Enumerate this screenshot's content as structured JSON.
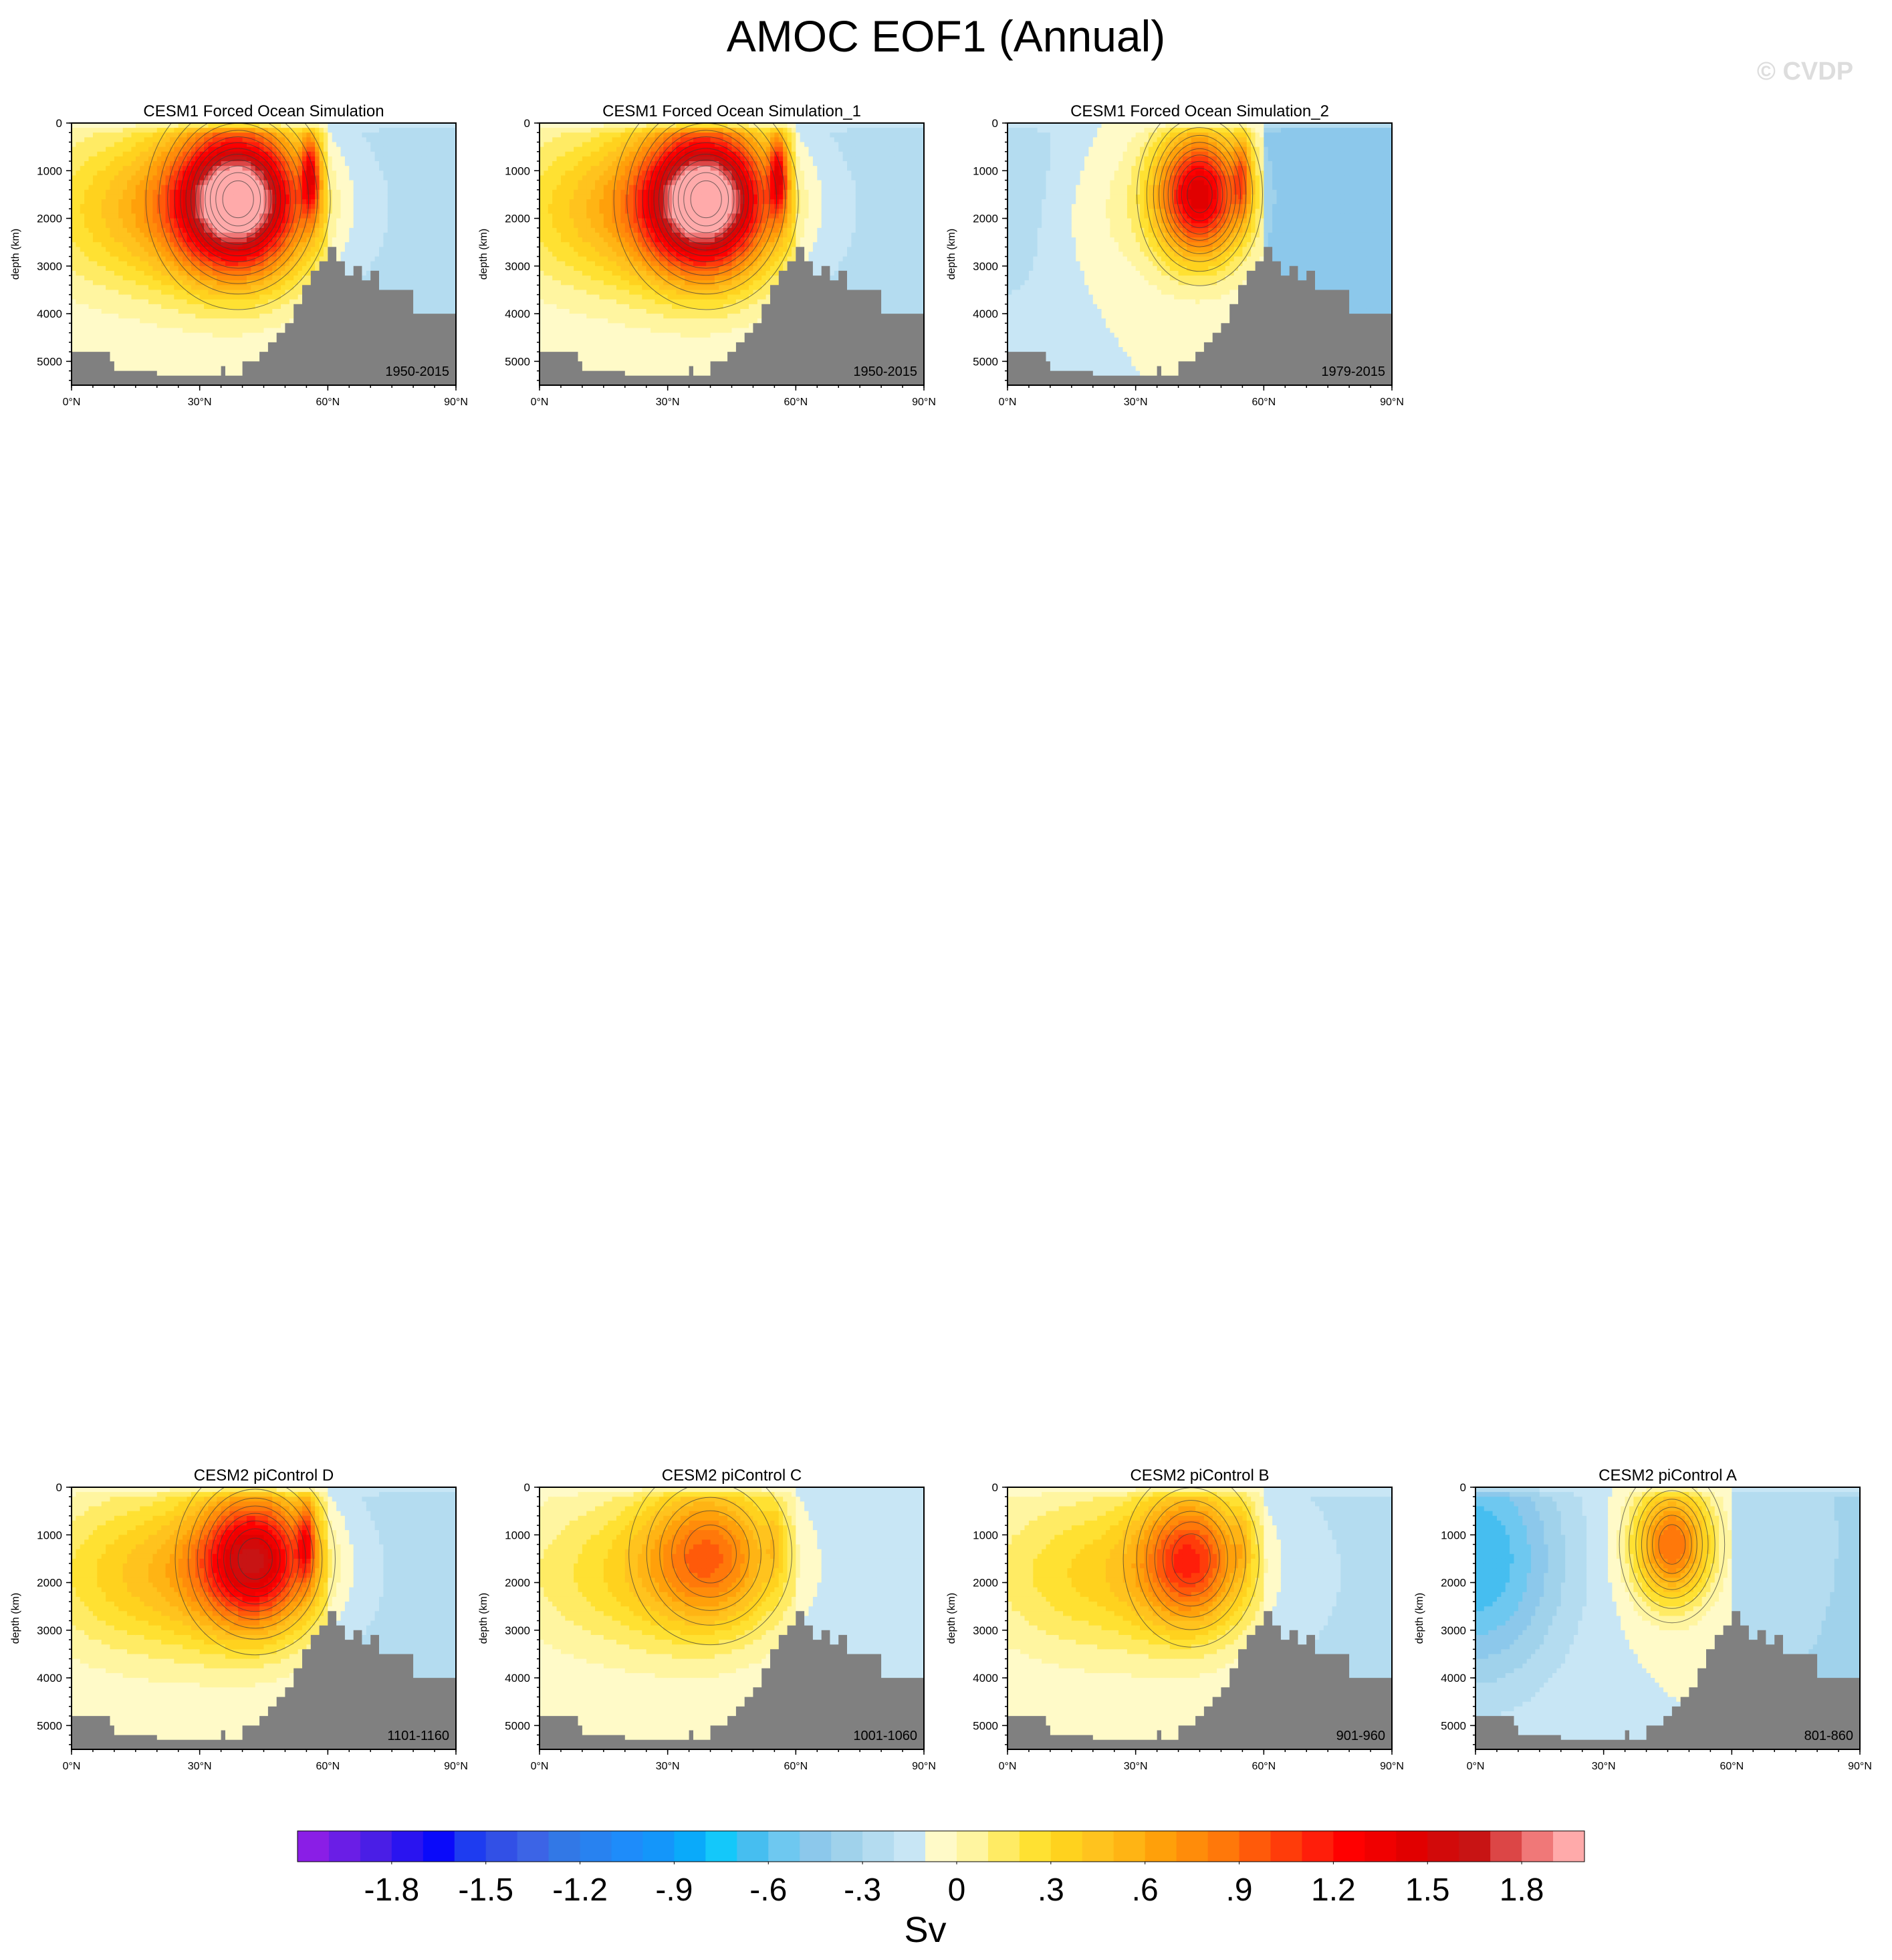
{
  "figure": {
    "title": "AMOC EOF1 (Annual)",
    "watermark": "© CVDP"
  },
  "chart_data": [
    {
      "type": "heatmap",
      "title": "CESM1 Forced Ocean Simulation",
      "period": "1950-2015",
      "ylabel": "depth (km)",
      "xlabel": "",
      "xlim": [
        0,
        90
      ],
      "ylim": [
        5500,
        0
      ],
      "xticks": [
        "0°N",
        "30°N",
        "60°N",
        "90°N"
      ],
      "yticks": [
        "0",
        "1000",
        "2000",
        "3000",
        "4000",
        "5000"
      ],
      "pattern": {
        "main_lat": 39,
        "main_depth": 1600,
        "main_amp": 1.9,
        "main_w_lat": 14,
        "main_w_depth": 1500,
        "sec_lat": 56,
        "sec_amp": 1.0,
        "bg_amp": 0.7,
        "north_amp": -0.15,
        "west_amp": 0.0
      }
    },
    {
      "type": "heatmap",
      "title": "CESM1 Forced Ocean Simulation_1",
      "period": "1950-2015",
      "ylabel": "depth (km)",
      "xlabel": "",
      "xlim": [
        0,
        90
      ],
      "ylim": [
        5500,
        0
      ],
      "xticks": [
        "0°N",
        "30°N",
        "60°N",
        "90°N"
      ],
      "yticks": [
        "0",
        "1000",
        "2000",
        "3000",
        "4000",
        "5000"
      ],
      "pattern": {
        "main_lat": 39,
        "main_depth": 1600,
        "main_amp": 1.9,
        "main_w_lat": 14,
        "main_w_depth": 1500,
        "sec_lat": 56,
        "sec_amp": 1.0,
        "bg_amp": 0.7,
        "north_amp": -0.15,
        "west_amp": 0.0
      }
    },
    {
      "type": "heatmap",
      "title": "CESM1 Forced Ocean Simulation_2",
      "period": "1979-2015",
      "ylabel": "depth (km)",
      "xlabel": "",
      "xlim": [
        0,
        90
      ],
      "ylim": [
        5500,
        0
      ],
      "xticks": [
        "0°N",
        "30°N",
        "60°N",
        "90°N"
      ],
      "yticks": [
        "0",
        "1000",
        "2000",
        "3000",
        "4000",
        "5000"
      ],
      "pattern": {
        "main_lat": 45,
        "main_depth": 1500,
        "main_amp": 1.5,
        "main_w_lat": 10,
        "main_w_depth": 1300,
        "sec_lat": 55,
        "sec_amp": 0.6,
        "bg_amp": 0.15,
        "north_amp": -0.4,
        "west_amp": -0.25
      }
    },
    {
      "type": "heatmap",
      "title": "CESM2 piControl D",
      "period": "1101-1160",
      "ylabel": "depth (km)",
      "xlabel": "",
      "xlim": [
        0,
        90
      ],
      "ylim": [
        5500,
        0
      ],
      "xticks": [
        "0°N",
        "30°N",
        "60°N",
        "90°N"
      ],
      "yticks": [
        "0",
        "1000",
        "2000",
        "3000",
        "4000",
        "5000"
      ],
      "pattern": {
        "main_lat": 43,
        "main_depth": 1500,
        "main_amp": 1.35,
        "main_w_lat": 13,
        "main_w_depth": 1400,
        "sec_lat": 55,
        "sec_amp": 0.7,
        "bg_amp": 0.6,
        "north_amp": -0.15,
        "west_amp": 0.0
      }
    },
    {
      "type": "heatmap",
      "title": "CESM2 piControl C",
      "period": "1001-1060",
      "ylabel": "depth (km)",
      "xlabel": "",
      "xlim": [
        0,
        90
      ],
      "ylim": [
        5500,
        0
      ],
      "xticks": [
        "0°N",
        "30°N",
        "60°N",
        "90°N"
      ],
      "yticks": [
        "0",
        "1000",
        "2000",
        "3000",
        "4000",
        "5000"
      ],
      "pattern": {
        "main_lat": 40,
        "main_depth": 1400,
        "main_amp": 0.75,
        "main_w_lat": 15,
        "main_w_depth": 1500,
        "sec_lat": 55,
        "sec_amp": 0.2,
        "bg_amp": 0.4,
        "north_amp": -0.1,
        "west_amp": 0.0
      }
    },
    {
      "type": "heatmap",
      "title": "CESM2 piControl B",
      "period": "901-960",
      "ylabel": "depth (km)",
      "xlabel": "",
      "xlim": [
        0,
        90
      ],
      "ylim": [
        5500,
        0
      ],
      "xticks": [
        "0°N",
        "30°N",
        "60°N",
        "90°N"
      ],
      "yticks": [
        "0",
        "1000",
        "2000",
        "3000",
        "4000",
        "5000"
      ],
      "pattern": {
        "main_lat": 43,
        "main_depth": 1500,
        "main_amp": 0.95,
        "main_w_lat": 12,
        "main_w_depth": 1400,
        "sec_lat": 55,
        "sec_amp": 0.2,
        "bg_amp": 0.45,
        "north_amp": -0.12,
        "west_amp": 0.0
      }
    },
    {
      "type": "heatmap",
      "title": "CESM2 piControl A",
      "period": "801-860",
      "ylabel": "depth (km)",
      "xlabel": "",
      "xlim": [
        0,
        90
      ],
      "ylim": [
        5500,
        0
      ],
      "xticks": [
        "0°N",
        "30°N",
        "60°N",
        "90°N"
      ],
      "yticks": [
        "0",
        "1000",
        "2000",
        "3000",
        "4000",
        "5000"
      ],
      "pattern": {
        "main_lat": 46,
        "main_depth": 1200,
        "main_amp": 1.0,
        "main_w_lat": 9,
        "main_w_depth": 1200,
        "sec_lat": 55,
        "sec_amp": 0.0,
        "bg_amp": 0.0,
        "north_amp": -0.2,
        "west_amp": -0.6
      }
    }
  ],
  "bathymetry": {
    "lat": [
      0,
      4,
      9,
      10,
      20,
      34,
      35,
      36,
      38,
      40,
      42,
      44,
      46,
      48,
      50,
      52,
      54,
      56,
      58,
      60,
      62,
      64,
      66,
      68,
      70,
      72,
      74,
      76,
      78,
      80,
      82,
      84,
      86,
      88,
      90
    ],
    "depth": [
      4800,
      4800,
      5000,
      5200,
      5300,
      5300,
      5100,
      5300,
      5300,
      5000,
      5000,
      4800,
      4600,
      4400,
      4200,
      3800,
      3400,
      3100,
      2900,
      2600,
      2900,
      3200,
      3000,
      3300,
      3100,
      3500,
      3500,
      3500,
      3500,
      4000,
      4000,
      4000,
      4000,
      4000,
      4000
    ]
  },
  "colorbar": {
    "units": "Sv",
    "levels": [
      "-1.8",
      "-1.5",
      "-1.2",
      "-.9",
      "-.6",
      "-.3",
      "0",
      ".3",
      ".6",
      ".9",
      "1.2",
      "1.5",
      "1.8"
    ],
    "colors": [
      "#8a1ee6",
      "#6a1ee6",
      "#4a1ee6",
      "#2a14f0",
      "#0a0afa",
      "#1e3cf0",
      "#3250e6",
      "#3c64e6",
      "#3278e6",
      "#2882f0",
      "#1e8cfa",
      "#1496fa",
      "#0aaafa",
      "#14c8fa",
      "#46bef0",
      "#6ec8f0",
      "#8cc8eb",
      "#a0d2eb",
      "#b4dcf0",
      "#c8e6f5",
      "#fffac8",
      "#fff5a0",
      "#ffeb64",
      "#ffe132",
      "#ffd21e",
      "#ffc31e",
      "#ffb414",
      "#ffa00a",
      "#ff8c0a",
      "#ff780a",
      "#ff5a0a",
      "#ff3c0a",
      "#ff1e0a",
      "#ff0000",
      "#f00000",
      "#e10000",
      "#d20a0a",
      "#c81414",
      "#dc4646",
      "#f07878",
      "#ffaaaa"
    ]
  }
}
